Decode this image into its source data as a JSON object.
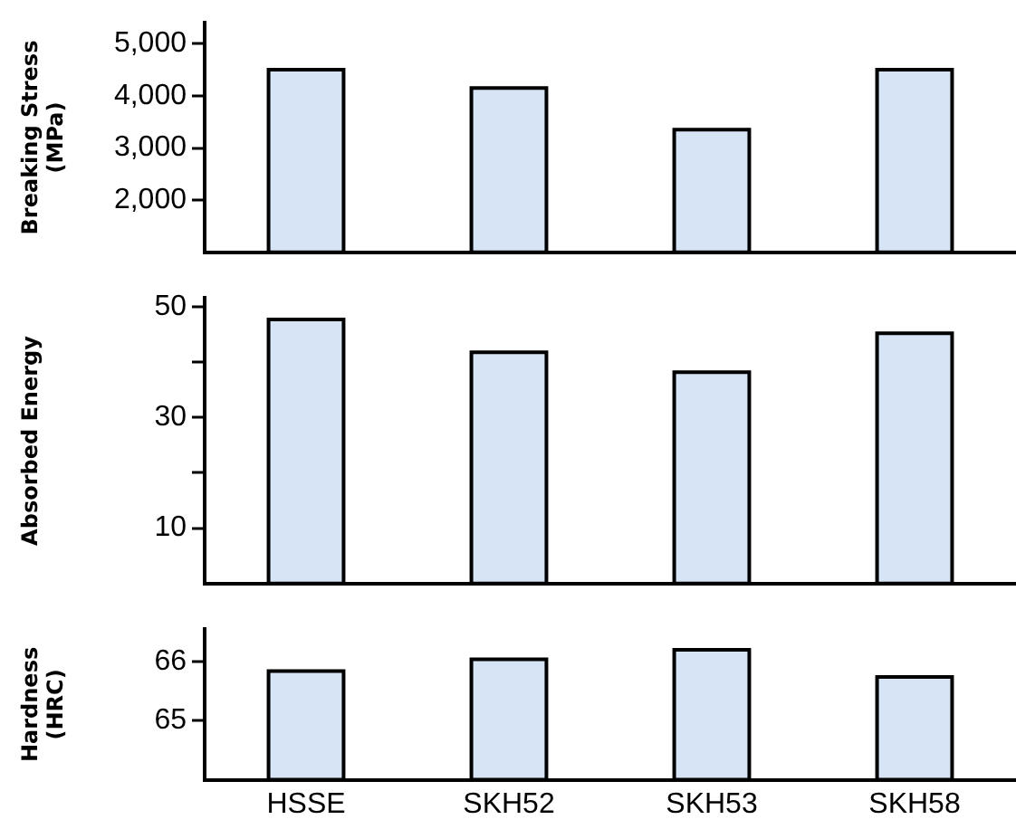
{
  "chart_data": [
    {
      "type": "bar",
      "ylabel": "Breaking Stress\n(MPa)",
      "categories": [
        null,
        null,
        null,
        null
      ],
      "series": [
        {
          "color": "#d6e4f5",
          "values": [
            4500,
            4150,
            3350,
            4500
          ]
        }
      ],
      "ylim": [
        1000,
        5400
      ],
      "yticks": [
        {
          "value": 2000,
          "label": "2,000"
        },
        {
          "value": 3000,
          "label": "3,000"
        },
        {
          "value": 4000,
          "label": "4,000"
        },
        {
          "value": 5000,
          "label": "5,000"
        }
      ],
      "grid": false,
      "legend": false,
      "tick_labels": "y"
    },
    {
      "type": "bar",
      "ylabel": "Absorbed Energy",
      "categories": [
        null,
        null,
        null,
        null
      ],
      "series": [
        {
          "color": "#d6e4f5",
          "values": [
            47.7,
            41.8,
            38.2,
            45.2
          ]
        }
      ],
      "ylim": [
        0,
        51.6
      ],
      "yticks": [
        10,
        {
          "value": 20,
          "label": null
        },
        30,
        {
          "value": 40,
          "label": null
        },
        50
      ],
      "grid": false,
      "legend": false,
      "tick_labels": "y"
    },
    {
      "type": "bar",
      "ylabel": "Hardness\n(HRC)",
      "categories": [
        "HSSE",
        "SKH52",
        "SKH53",
        "SKH58"
      ],
      "series": [
        {
          "color": "#d6e4f5",
          "values": [
            65.84,
            66.04,
            66.2,
            65.74
          ]
        }
      ],
      "ylim": [
        64,
        66.55
      ],
      "yticks": [
        65,
        66
      ],
      "grid": false,
      "legend": false
    }
  ]
}
